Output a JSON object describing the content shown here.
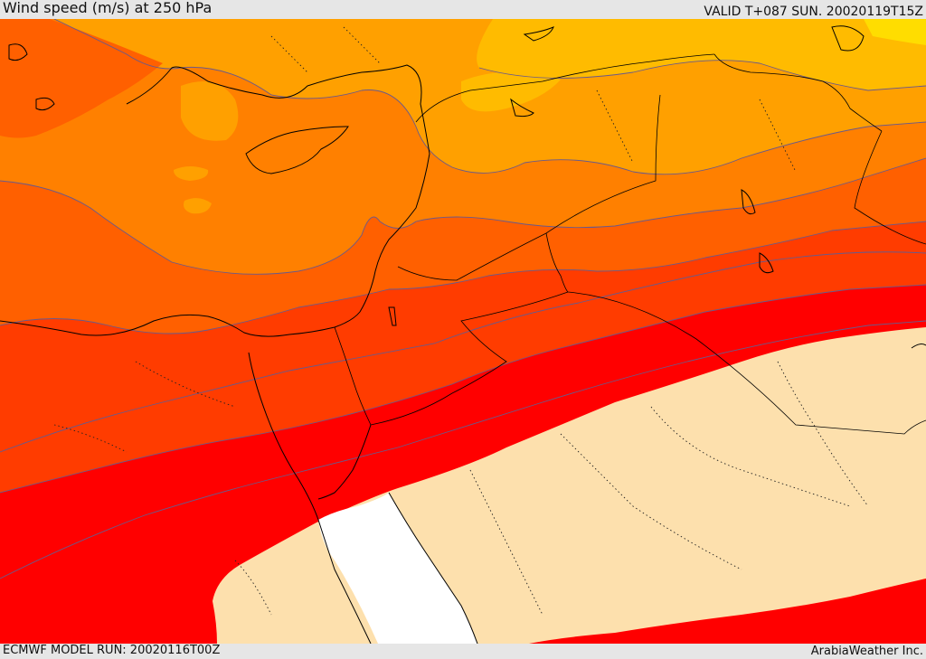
{
  "header": {
    "title": "Wind speed (m/s) at 250 hPa",
    "valid": "VALID T+087 SUN. 20020119T15Z"
  },
  "footer": {
    "model_run": "ECMWF MODEL RUN: 20020116T00Z",
    "credit": "ArabiaWeather Inc."
  },
  "colors": {
    "band_yellow": "#ffdd00",
    "band_gold": "#ffbb00",
    "band_amber": "#ffa000",
    "band_orange": "#ff8000",
    "band_dark_orange": "#ff6000",
    "band_red_orange": "#ff3c00",
    "band_red": "#ff0000",
    "sand_low": "#fde0ad",
    "sea_white": "#ffffff",
    "contour": "#6a5a8a",
    "coast": "#000000"
  }
}
